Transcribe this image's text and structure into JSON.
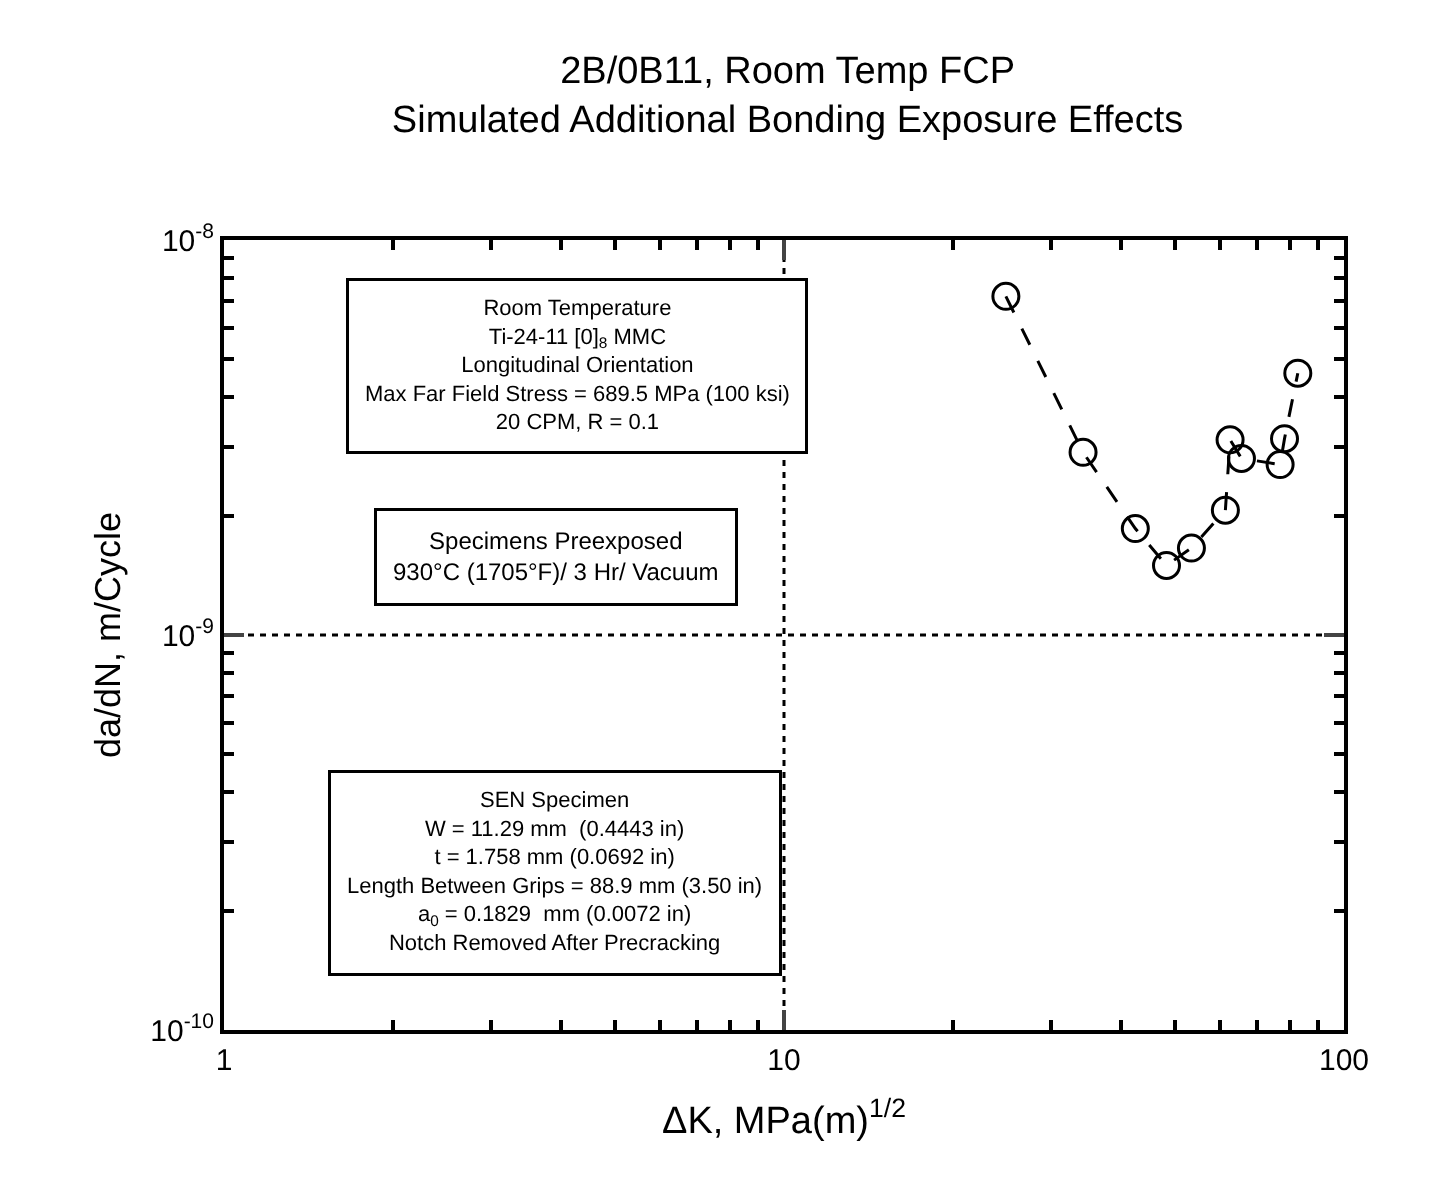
{
  "chart_data": {
    "type": "line",
    "title": "2B/0B11, Room Temp FCP\nSimulated Additional Bonding Exposure Effects",
    "xlabel": "ΔK, MPa(m)$^{1/2}$",
    "ylabel": "da/dN, m/Cycle",
    "x": [
      24.9,
      34.2,
      42.4,
      48.2,
      53.4,
      61.4,
      62.6,
      65.6,
      76.9,
      78.3,
      82.7
    ],
    "series": [
      {
        "color": "#000000",
        "values": [
          7.2e-09,
          2.9e-09,
          1.86e-09,
          1.5e-09,
          1.66e-09,
          2.07e-09,
          3.12e-09,
          2.8e-09,
          2.7e-09,
          3.14e-09,
          4.6e-09
        ]
      }
    ],
    "log": "xy",
    "xlim": [
      1,
      100
    ],
    "ylim": [
      1e-10,
      1e-08
    ],
    "xticks": [
      1,
      10,
      100
    ],
    "yticks": [
      {
        "value": 1e-10,
        "label": "10$^{-10}$"
      },
      {
        "value": 1e-09,
        "label": "10$^{-9}$"
      },
      {
        "value": 1e-08,
        "label": "10$^{-8}$"
      }
    ],
    "grid": false,
    "legend": false,
    "marker": "circle",
    "line_style": "dashed",
    "ref_lines": [
      {
        "axis": "x",
        "value": 10,
        "line_style": "dotted",
        "color": "#000000"
      },
      {
        "axis": "y",
        "value": 1e-09,
        "line_style": "dotted",
        "color": "#000000"
      }
    ],
    "annotations": [
      "Room Temperature\nTi-24-11 [0]$_{8}$ MMC\nLongitudinal Orientation\nMax Far Field Stress = 689.5 MPa (100 ksi)\n20 CPM, R = 0.1",
      "Specimens Preexposed\n930°C (1705°F)/ 3 Hr/ Vacuum",
      "SEN Specimen\nW = 11.29 mm  (0.4443 in)\nt = 1.758 mm (0.0692 in)\nLength Between Grips = 88.9 mm (3.50 in)\na$_{0}$ = 0.1829  mm (0.0072 in)\nNotch Removed After Precracking"
    ]
  }
}
